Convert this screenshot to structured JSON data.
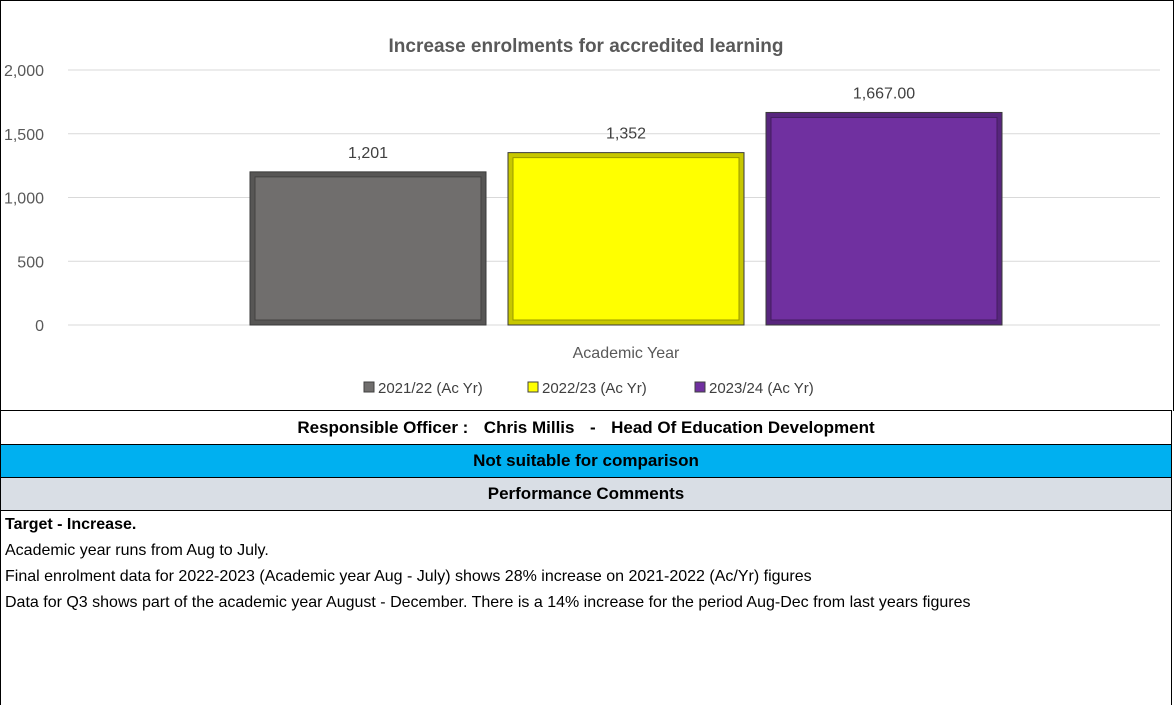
{
  "chart_data": {
    "type": "bar",
    "title": "Increase enrolments for accredited learning",
    "xlabel": "Academic Year",
    "ylabel": "",
    "ylim": [
      0,
      2000
    ],
    "yticks": [
      0,
      500,
      1000,
      1500,
      2000
    ],
    "ytick_labels": [
      "0",
      "500",
      "1,000",
      "1,500",
      "2,000"
    ],
    "grid": true,
    "legend_position": "bottom",
    "categories": [
      "Academic Year"
    ],
    "series": [
      {
        "name": "2021/22 (Ac Yr)",
        "values": [
          1201
        ],
        "label": "1,201",
        "color": "#706e6d"
      },
      {
        "name": "2022/23 (Ac Yr)",
        "values": [
          1352
        ],
        "label": "1,352",
        "color": "#ffff00"
      },
      {
        "name": "2023/24 (Ac Yr)",
        "values": [
          1667
        ],
        "label": "1,667.00",
        "color": "#7030a0"
      }
    ]
  },
  "officer": {
    "prefix": "Responsible Officer :",
    "name": "Chris Millis",
    "separator": "-",
    "role": "Head Of Education Development"
  },
  "comparison_label": "Not suitable for comparison",
  "comparison_color": "#00b0f0",
  "performance_header": "Performance Comments",
  "comments": {
    "heading": "Target - Increase.",
    "lines": [
      "Academic year runs from Aug to July.",
      "Final enrolment data for 2022-2023 (Academic year Aug - July) shows 28% increase on 2021-2022 (Ac/Yr) figures",
      "Data for Q3 shows part of the academic year August - December. There is a 14% increase for the period Aug-Dec from last years figures"
    ]
  }
}
